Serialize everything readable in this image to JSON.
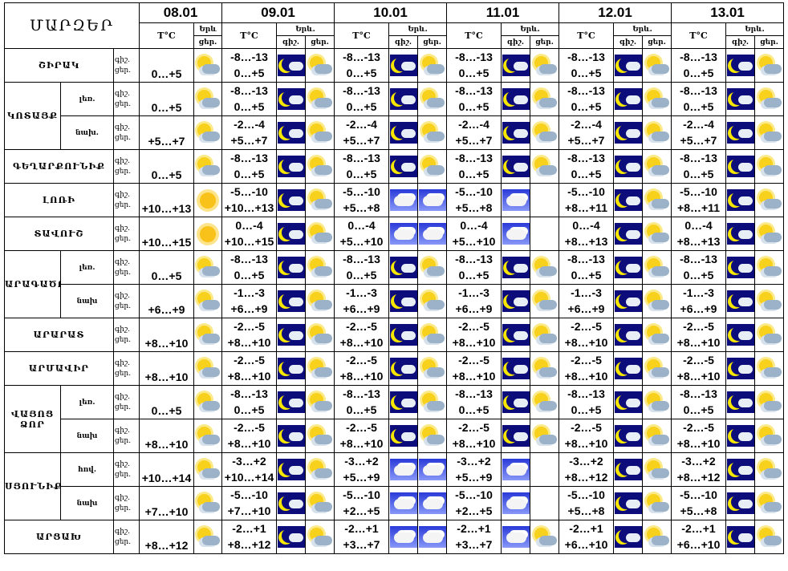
{
  "title": "ՄԱՐԶԵՐ",
  "dates": [
    "08.01",
    "09.01",
    "10.01",
    "11.01",
    "12.01",
    "13.01"
  ],
  "headers": {
    "temp": "T°C",
    "phen_first": "Երև",
    "phen": "Երև.",
    "night_first": "",
    "day_first": "ցեր.",
    "night": "գիշ.",
    "day": "ցեր."
  },
  "day_night": {
    "night": "գիշ.",
    "day": "ցեր."
  },
  "regions": [
    {
      "name": "ՇԻՐԱԿ",
      "subs": [
        {
          "label": "",
          "t": [
            [
              "",
              "0…+5"
            ],
            [
              "-8…-13",
              "0…+5"
            ],
            [
              "-8…-13",
              "0…+5"
            ],
            [
              "-8…-13",
              "0…+5"
            ],
            [
              "-8…-13",
              "0…+5"
            ],
            [
              "-8…-13",
              "0…+5"
            ]
          ],
          "i": [
            [
              "sunc"
            ],
            [
              "night",
              "sunc"
            ],
            [
              "night",
              "sunc"
            ],
            [
              "night",
              "sunc"
            ],
            [
              "night",
              "sunc"
            ],
            [
              "night",
              "sunc"
            ]
          ]
        }
      ]
    },
    {
      "name": "ԿՈՏԱՅՔ",
      "subs": [
        {
          "label": "լեռ.",
          "t": [
            [
              "",
              "0…+5"
            ],
            [
              "-8…-13",
              "0…+5"
            ],
            [
              "-8…-13",
              "0…+5"
            ],
            [
              "-8…-13",
              "0…+5"
            ],
            [
              "-8…-13",
              "0…+5"
            ],
            [
              "-8…-13",
              "0…+5"
            ]
          ],
          "i": [
            [
              "sunc"
            ],
            [
              "night",
              "sunc"
            ],
            [
              "night",
              "sunc"
            ],
            [
              "night",
              "sunc"
            ],
            [
              "night",
              "sunc"
            ],
            [
              "night",
              "sunc"
            ]
          ]
        },
        {
          "label": "նախ.",
          "t": [
            [
              "",
              "+5…+7"
            ],
            [
              "-2…-4",
              "+5…+7"
            ],
            [
              "-2…-4",
              "+5…+7"
            ],
            [
              "-2…-4",
              "+5…+7"
            ],
            [
              "-2…-4",
              "+5…+7"
            ],
            [
              "-2…-4",
              "+5…+7"
            ]
          ],
          "i": [
            [
              "sunc"
            ],
            [
              "night",
              "sunc"
            ],
            [
              "night",
              "sunc"
            ],
            [
              "night",
              "sunc"
            ],
            [
              "night",
              "sunc"
            ],
            [
              "night",
              "sunc"
            ]
          ]
        }
      ]
    },
    {
      "name": "ԳԵՂԱՐՔՈՒՆԻՔ",
      "subs": [
        {
          "label": "",
          "t": [
            [
              "",
              "0…+5"
            ],
            [
              "-8…-13",
              "0…+5"
            ],
            [
              "-8…-13",
              "0…+5"
            ],
            [
              "-8…-13",
              "0…+5"
            ],
            [
              "-8…-13",
              "0…+5"
            ],
            [
              "-8…-13",
              "0…+5"
            ]
          ],
          "i": [
            [
              "sunc"
            ],
            [
              "night",
              "sunc"
            ],
            [
              "night",
              "sunc"
            ],
            [
              "night",
              "sunc"
            ],
            [
              "night",
              "sunc"
            ],
            [
              "night",
              "sunc"
            ]
          ]
        }
      ]
    },
    {
      "name": "ԼՈՌԻ",
      "subs": [
        {
          "label": "",
          "t": [
            [
              "",
              "+10…+13"
            ],
            [
              "-5…-10",
              "+10…+13"
            ],
            [
              "-5…-10",
              "+5…+8"
            ],
            [
              "-5…-10",
              "+5…+8"
            ],
            [
              "-5…-10",
              "+8…+11"
            ],
            [
              "-5…-10",
              "+8…+11"
            ]
          ],
          "i": [
            [
              "sun"
            ],
            [
              "night",
              "sunc"
            ],
            [
              "cloud",
              "cloud"
            ],
            [
              "cloud",
              ""
            ],
            [
              "night",
              "sunc"
            ],
            [
              "night",
              "sunc"
            ]
          ]
        }
      ]
    },
    {
      "name": "ՏԱՎՈՒՇ",
      "subs": [
        {
          "label": "",
          "t": [
            [
              "",
              "+10…+15"
            ],
            [
              "0…-4",
              "+10…+15"
            ],
            [
              "0…-4",
              "+5…+10"
            ],
            [
              "0…-4",
              "+5…+10"
            ],
            [
              "0…-4",
              "+8…+13"
            ],
            [
              "0…-4",
              "+8…+13"
            ]
          ],
          "i": [
            [
              "sun"
            ],
            [
              "night",
              "sunc"
            ],
            [
              "cloud",
              "cloud"
            ],
            [
              "cloud",
              ""
            ],
            [
              "night",
              "sunc"
            ],
            [
              "night",
              "sunc"
            ]
          ]
        }
      ]
    },
    {
      "name": "ԱՐԱԳԱԾՈՏՆ",
      "subs": [
        {
          "label": "լեռ.",
          "t": [
            [
              "",
              "0…+5"
            ],
            [
              "-8…-13",
              "0…+5"
            ],
            [
              "-8…-13",
              "0…+5"
            ],
            [
              "-8…-13",
              "0…+5"
            ],
            [
              "-8…-13",
              "0…+5"
            ],
            [
              "-8…-13",
              "0…+5"
            ]
          ],
          "i": [
            [
              "sunc"
            ],
            [
              "night",
              "sunc"
            ],
            [
              "night",
              "sunc"
            ],
            [
              "night",
              "sunc"
            ],
            [
              "night",
              "sunc"
            ],
            [
              "night",
              "sunc"
            ]
          ]
        },
        {
          "label": "նախ",
          "t": [
            [
              "",
              "+6…+9"
            ],
            [
              "-1…-3",
              "+6…+9"
            ],
            [
              "-1…-3",
              "+6…+9"
            ],
            [
              "-1…-3",
              "+6…+9"
            ],
            [
              "-1…-3",
              "+6…+9"
            ],
            [
              "-1…-3",
              "+6…+9"
            ]
          ],
          "i": [
            [
              "sunc"
            ],
            [
              "night",
              "sunc"
            ],
            [
              "night",
              "sunc"
            ],
            [
              "night",
              "sunc"
            ],
            [
              "night",
              "sunc"
            ],
            [
              "night",
              "sunc"
            ]
          ]
        }
      ]
    },
    {
      "name": "ԱՐԱՐԱՏ",
      "subs": [
        {
          "label": "",
          "t": [
            [
              "",
              "+8…+10"
            ],
            [
              "-2…-5",
              "+8…+10"
            ],
            [
              "-2…-5",
              "+8…+10"
            ],
            [
              "-2…-5",
              "+8…+10"
            ],
            [
              "-2…-5",
              "+8…+10"
            ],
            [
              "-2…-5",
              "+8…+10"
            ]
          ],
          "i": [
            [
              "sunc"
            ],
            [
              "night",
              "sunc"
            ],
            [
              "night",
              "sunc"
            ],
            [
              "night",
              "sunc"
            ],
            [
              "night",
              "sunc"
            ],
            [
              "night",
              "sunc"
            ]
          ]
        }
      ]
    },
    {
      "name": "ԱՐՄԱՎԻՐ",
      "subs": [
        {
          "label": "",
          "t": [
            [
              "",
              "+8…+10"
            ],
            [
              "-2…-5",
              "+8…+10"
            ],
            [
              "-2…-5",
              "+8…+10"
            ],
            [
              "-2…-5",
              "+8…+10"
            ],
            [
              "-2…-5",
              "+8…+10"
            ],
            [
              "-2…-5",
              "+8…+10"
            ]
          ],
          "i": [
            [
              "sunc"
            ],
            [
              "night",
              "sunc"
            ],
            [
              "night",
              "sunc"
            ],
            [
              "night",
              "sunc"
            ],
            [
              "night",
              "sunc"
            ],
            [
              "night",
              "sunc"
            ]
          ]
        }
      ]
    },
    {
      "name": "ՎԱՅՈՑ ՁՈՐ",
      "subs": [
        {
          "label": "լեռ.",
          "t": [
            [
              "",
              "0…+5"
            ],
            [
              "-8…-13",
              "0…+5"
            ],
            [
              "-8…-13",
              "0…+5"
            ],
            [
              "-8…-13",
              "0…+5"
            ],
            [
              "-8…-13",
              "0…+5"
            ],
            [
              "-8…-13",
              "0…+5"
            ]
          ],
          "i": [
            [
              "sunc"
            ],
            [
              "night",
              "sunc"
            ],
            [
              "night",
              "sunc"
            ],
            [
              "night",
              "sunc"
            ],
            [
              "night",
              "sunc"
            ],
            [
              "night",
              "sunc"
            ]
          ]
        },
        {
          "label": "նախ",
          "t": [
            [
              "",
              "+8…+10"
            ],
            [
              "-2…-5",
              "+8…+10"
            ],
            [
              "-2…-5",
              "+8…+10"
            ],
            [
              "-2…-5",
              "+8…+10"
            ],
            [
              "-2…-5",
              "+8…+10"
            ],
            [
              "-2…-5",
              "+8…+10"
            ]
          ],
          "i": [
            [
              "sunc"
            ],
            [
              "night",
              "sunc"
            ],
            [
              "night",
              "sunc"
            ],
            [
              "night",
              "sunc"
            ],
            [
              "night",
              "sunc"
            ],
            [
              "night",
              "sunc"
            ]
          ]
        }
      ]
    },
    {
      "name": "ՍՅՈՒՆԻՔ",
      "subs": [
        {
          "label": "հով.",
          "t": [
            [
              "",
              "+10…+14"
            ],
            [
              "-3…+2",
              "+10…+14"
            ],
            [
              "-3…+2",
              "+5…+9"
            ],
            [
              "-3…+2",
              "+5…+9"
            ],
            [
              "-3…+2",
              "+8…+12"
            ],
            [
              "-3…+2",
              "+8…+12"
            ]
          ],
          "i": [
            [
              "sunc"
            ],
            [
              "night",
              "sunc"
            ],
            [
              "cloud",
              "cloud"
            ],
            [
              "cloud",
              ""
            ],
            [
              "night",
              "sunc"
            ],
            [
              "night",
              "sunc"
            ]
          ]
        },
        {
          "label": "նախ",
          "t": [
            [
              "",
              "+7…+10"
            ],
            [
              "-5…-10",
              "+7…+10"
            ],
            [
              "-5…-10",
              "+2…+5"
            ],
            [
              "-5…-10",
              "+2…+5"
            ],
            [
              "-5…-10",
              "+5…+8"
            ],
            [
              "-5…-10",
              "+5…+8"
            ]
          ],
          "i": [
            [
              "sunc"
            ],
            [
              "night",
              "sunc"
            ],
            [
              "cloud",
              "cloud"
            ],
            [
              "cloud",
              ""
            ],
            [
              "night",
              "sunc"
            ],
            [
              "night",
              "sunc"
            ]
          ]
        }
      ]
    },
    {
      "name": "ԱՐՑԱԽ",
      "subs": [
        {
          "label": "",
          "t": [
            [
              "",
              "+8…+12"
            ],
            [
              "-2…+1",
              "+8…+12"
            ],
            [
              "-2…+1",
              "+3…+7"
            ],
            [
              "-2…+1",
              "+3…+7"
            ],
            [
              "-2…+1",
              "+6…+10"
            ],
            [
              "-2…+1",
              "+6…+10"
            ]
          ],
          "i": [
            [
              "sunc"
            ],
            [
              "night",
              "sunc"
            ],
            [
              "cloud",
              "cloud"
            ],
            [
              "cloud",
              "sunc"
            ],
            [
              "night",
              "sunc"
            ],
            [
              "night",
              "sunc"
            ]
          ]
        }
      ]
    }
  ]
}
